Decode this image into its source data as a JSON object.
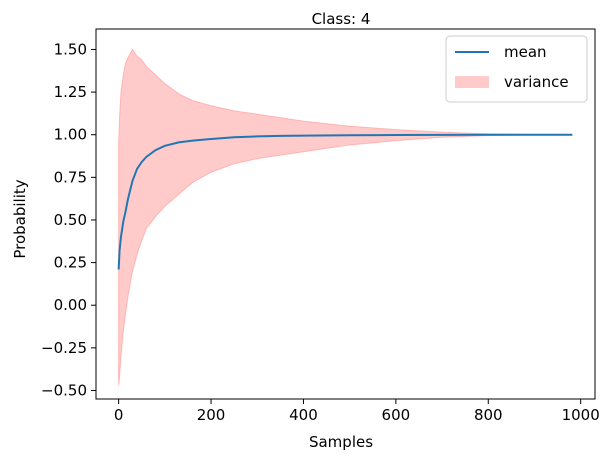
{
  "chart_data": {
    "type": "line",
    "title": "Class: 4",
    "xlabel": "Samples",
    "ylabel": "Probability",
    "xlim": [
      -49,
      1031
    ],
    "ylim": [
      -0.55,
      1.62
    ],
    "x_ticks": [
      0,
      200,
      400,
      600,
      800,
      1000
    ],
    "x_tick_labels": [
      "0",
      "200",
      "400",
      "600",
      "800",
      "1000"
    ],
    "y_ticks": [
      -0.5,
      -0.25,
      0.0,
      0.25,
      0.5,
      0.75,
      1.0,
      1.25,
      1.5
    ],
    "y_tick_labels": [
      "−0.50",
      "−0.25",
      "0.00",
      "0.25",
      "0.50",
      "0.75",
      "1.00",
      "1.25",
      "1.50"
    ],
    "grid": false,
    "legend": {
      "position": "top-right",
      "entries": [
        {
          "label": "mean",
          "kind": "line",
          "color": "#1f77b4"
        },
        {
          "label": "variance",
          "kind": "patch",
          "color": "#ff9896"
        }
      ]
    },
    "series": [
      {
        "name": "mean",
        "color": "#1f77b4",
        "x": [
          0,
          2,
          5,
          10,
          15,
          20,
          30,
          40,
          50,
          60,
          80,
          100,
          130,
          160,
          200,
          250,
          300,
          350,
          400,
          500,
          600,
          700,
          800,
          900,
          982
        ],
        "y": [
          0.21,
          0.32,
          0.4,
          0.49,
          0.55,
          0.62,
          0.73,
          0.8,
          0.84,
          0.87,
          0.91,
          0.935,
          0.955,
          0.965,
          0.975,
          0.985,
          0.99,
          0.993,
          0.995,
          0.997,
          0.998,
          0.999,
          1.0,
          1.0,
          1.0
        ]
      },
      {
        "name": "variance",
        "color": "#ff9896",
        "x": [
          0,
          2,
          5,
          10,
          15,
          20,
          30,
          40,
          50,
          60,
          80,
          100,
          130,
          160,
          200,
          250,
          300,
          350,
          400,
          500,
          600,
          700,
          800,
          900,
          982
        ],
        "upper": [
          0.95,
          1.1,
          1.25,
          1.35,
          1.42,
          1.45,
          1.5,
          1.46,
          1.44,
          1.4,
          1.35,
          1.3,
          1.24,
          1.2,
          1.17,
          1.14,
          1.12,
          1.1,
          1.08,
          1.05,
          1.03,
          1.015,
          1.005,
          1.001,
          1.0
        ],
        "lower": [
          -0.47,
          -0.42,
          -0.3,
          -0.15,
          -0.05,
          0.05,
          0.2,
          0.3,
          0.38,
          0.45,
          0.52,
          0.58,
          0.65,
          0.72,
          0.78,
          0.83,
          0.86,
          0.88,
          0.9,
          0.94,
          0.965,
          0.985,
          0.995,
          0.999,
          1.0
        ]
      }
    ]
  }
}
